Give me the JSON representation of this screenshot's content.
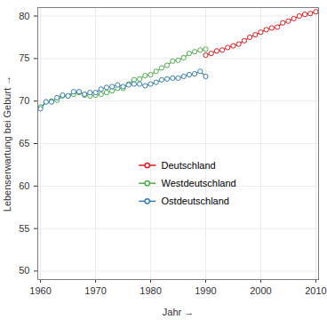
{
  "chart_data": {
    "type": "line",
    "x_label": "Jahr",
    "y_label": "Lebenserwartung bei Geburt",
    "x": [
      1960,
      1961,
      1962,
      1963,
      1964,
      1965,
      1966,
      1967,
      1968,
      1969,
      1970,
      1971,
      1972,
      1973,
      1974,
      1975,
      1976,
      1977,
      1978,
      1979,
      1980,
      1981,
      1982,
      1983,
      1984,
      1985,
      1986,
      1987,
      1988,
      1989,
      1990,
      1991,
      1992,
      1993,
      1994,
      1995,
      1996,
      1997,
      1998,
      1999,
      2000,
      2001,
      2002,
      2003,
      2004,
      2005,
      2006,
      2007,
      2008,
      2009,
      2010
    ],
    "series": [
      {
        "name": "Deutschland",
        "color": "#e41a1c",
        "marker": "circle",
        "values": [
          null,
          null,
          null,
          null,
          null,
          null,
          null,
          null,
          null,
          null,
          null,
          null,
          null,
          null,
          null,
          null,
          null,
          null,
          null,
          null,
          null,
          null,
          null,
          null,
          null,
          null,
          null,
          null,
          null,
          null,
          75.4,
          75.6,
          75.9,
          76.0,
          76.3,
          76.5,
          76.7,
          77.1,
          77.5,
          77.8,
          78.1,
          78.4,
          78.6,
          78.7,
          79.2,
          79.4,
          79.7,
          80.0,
          80.2,
          80.3,
          80.5
        ]
      },
      {
        "name": "Westdeutschland",
        "color": "#4daf4a",
        "marker": "circle",
        "values": [
          69.3,
          69.9,
          70.0,
          70.1,
          70.6,
          70.6,
          70.8,
          71.0,
          70.7,
          70.6,
          70.7,
          70.8,
          71.0,
          71.2,
          71.5,
          71.5,
          72.0,
          72.5,
          72.6,
          73.0,
          73.1,
          73.5,
          73.9,
          74.2,
          74.7,
          74.8,
          75.1,
          75.6,
          75.8,
          76.0,
          76.1,
          null,
          null,
          null,
          null,
          null,
          null,
          null,
          null,
          null,
          null,
          null,
          null,
          null,
          null,
          null,
          null,
          null,
          null,
          null,
          null
        ]
      },
      {
        "name": "Ostdeutschland",
        "color": "#377eb8",
        "marker": "circle",
        "values": [
          69.1,
          69.9,
          69.9,
          70.4,
          70.7,
          70.6,
          71.1,
          71.1,
          70.8,
          71.0,
          71.0,
          71.4,
          71.6,
          71.7,
          71.9,
          71.7,
          71.9,
          72.0,
          72.0,
          71.8,
          72.0,
          72.2,
          72.5,
          72.6,
          72.7,
          72.7,
          72.9,
          73.1,
          73.2,
          73.5,
          72.9,
          null,
          null,
          null,
          null,
          null,
          null,
          null,
          null,
          null,
          null,
          null,
          null,
          null,
          null,
          null,
          null,
          null,
          null,
          null,
          null
        ]
      }
    ],
    "xlim": [
      1959.5,
      2010.5
    ],
    "xticks": [
      1960,
      1970,
      1980,
      1990,
      2000,
      2010
    ],
    "ylim": [
      49,
      81
    ],
    "yticks": [
      50,
      55,
      60,
      65,
      70,
      75,
      80
    ],
    "grid": true,
    "legend": "center"
  }
}
